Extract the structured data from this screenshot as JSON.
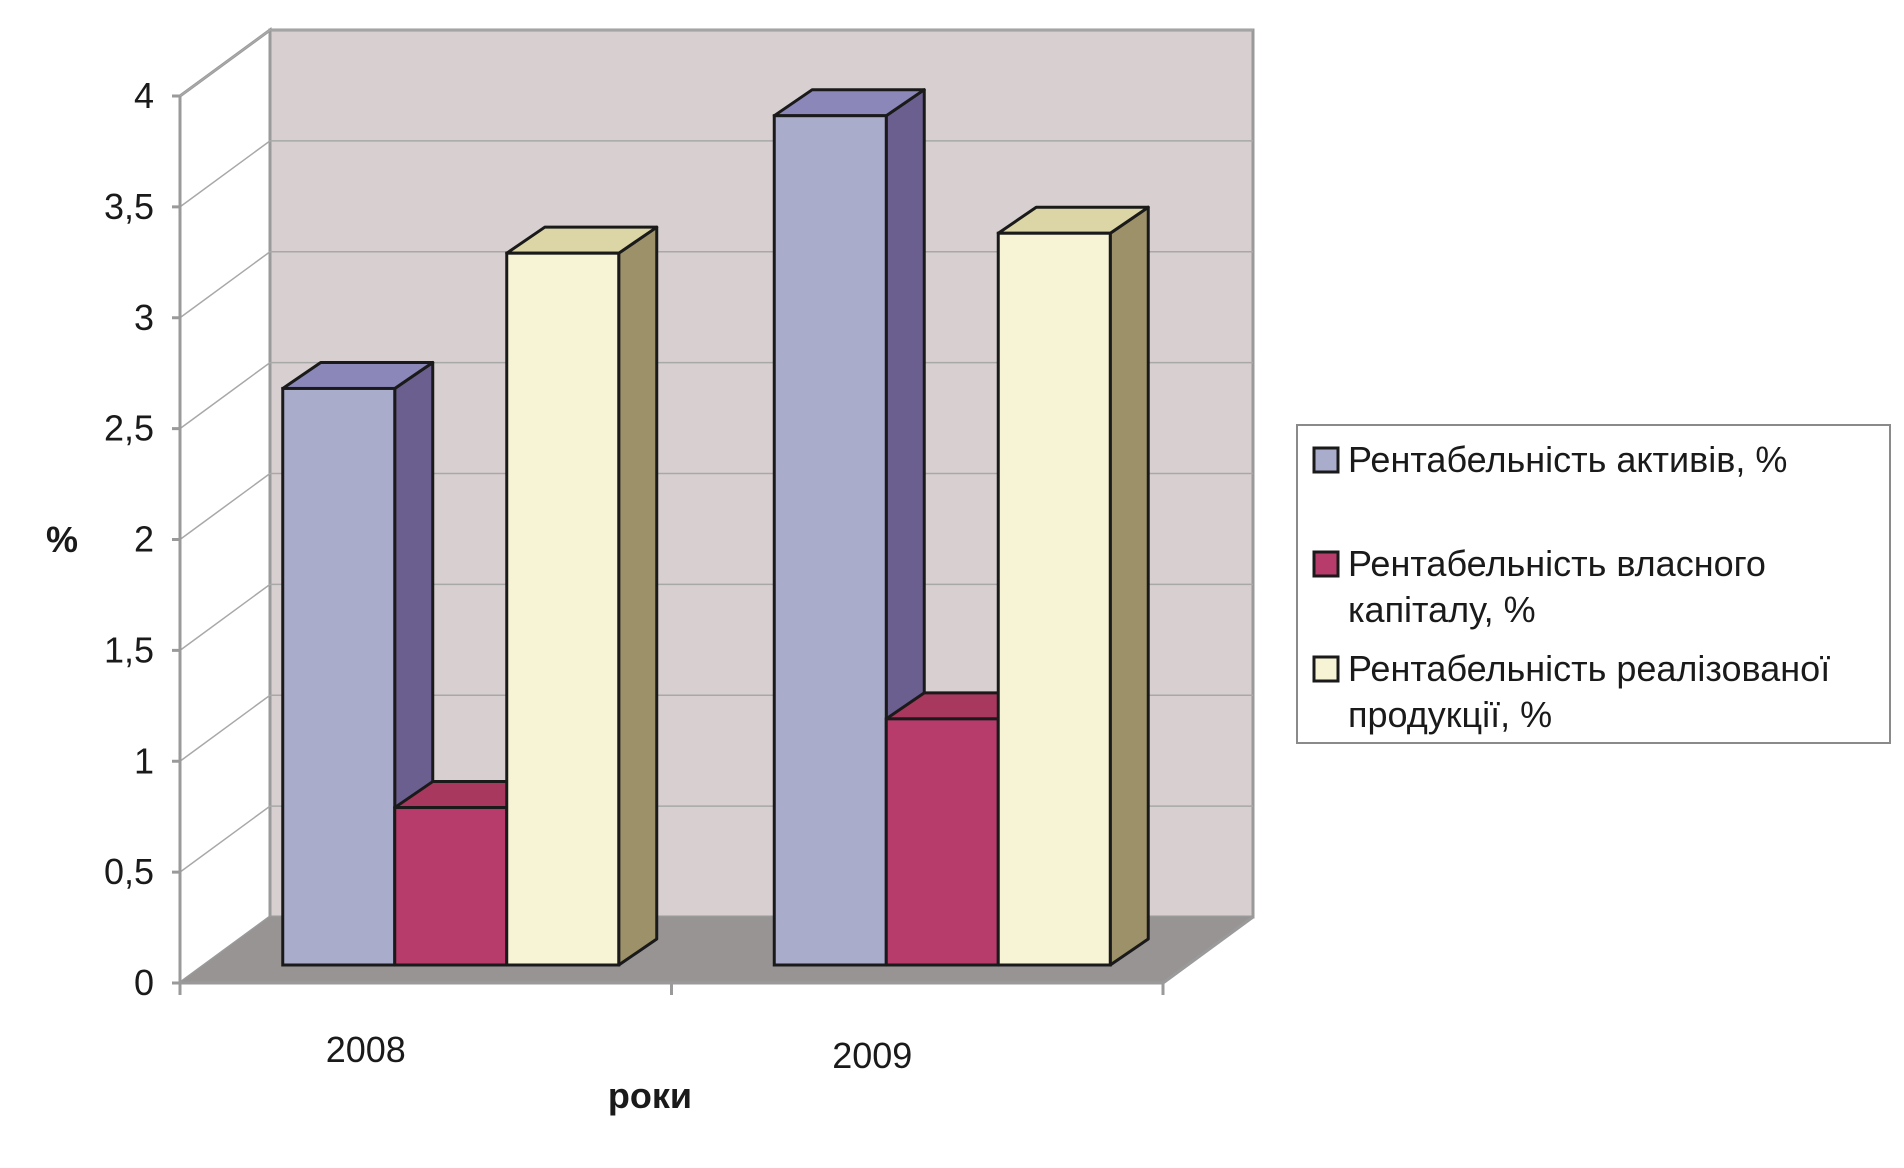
{
  "chart_data": {
    "type": "bar",
    "style": "3d-clustered-column",
    "categories": [
      "2008",
      "2009"
    ],
    "series": [
      {
        "name": "Рентабельність активів, %",
        "values": [
          2.6,
          3.83
        ]
      },
      {
        "name": "Рентабельність власного капіталу, %",
        "values": [
          0.71,
          1.11
        ]
      },
      {
        "name": "Рентабельність реалізованої продукції, %",
        "values": [
          3.21,
          3.3
        ]
      }
    ],
    "xlabel": "роки",
    "ylabel": "%",
    "ylim": [
      0,
      4
    ],
    "yticks": [
      {
        "value": 0,
        "label": "0"
      },
      {
        "value": 0.5,
        "label": "0,5"
      },
      {
        "value": 1,
        "label": "1"
      },
      {
        "value": 1.5,
        "label": "1,5"
      },
      {
        "value": 2,
        "label": "2"
      },
      {
        "value": 2.5,
        "label": "2,5"
      },
      {
        "value": 3,
        "label": "3"
      },
      {
        "value": 3.5,
        "label": "3,5"
      },
      {
        "value": 4,
        "label": "4"
      }
    ],
    "grid": true,
    "legend_position": "right",
    "colors": {
      "series_front": [
        "#aaaccb",
        "#b83c6b",
        "#f7f4d6"
      ],
      "series_top": [
        "#8b87b8",
        "#a8385e",
        "#dcd6a6"
      ],
      "series_side": [
        "#6b5f8f",
        "#8e2f55",
        "#9c9168"
      ],
      "back_wall": "#d8d0d0",
      "side_wall": "#ffffff",
      "floor": "#989494",
      "grid": "#a8a8a8",
      "edge": "#1a1a1a",
      "frame": "#9a9a9a"
    }
  }
}
